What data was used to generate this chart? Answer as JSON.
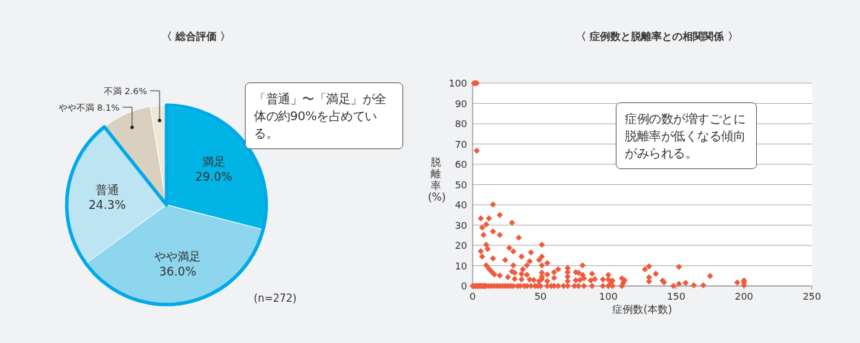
{
  "chart_data": [
    {
      "type": "pie",
      "title": "〈 総合評価 〉",
      "categories": [
        "満足",
        "やや満足",
        "普通",
        "やや不満",
        "不満"
      ],
      "values": [
        29.0,
        36.0,
        24.3,
        8.1,
        2.6
      ],
      "value_labels": [
        "29.0%",
        "36.0%",
        "24.3%",
        "8.1%",
        "2.6%"
      ],
      "colors": [
        "#00b5e6",
        "#8dd6ee",
        "#bde4f2",
        "#d9d0bf",
        "#eee8d8"
      ],
      "annotations": [
        "「普通」〜「満足」が全体の約90%を占めている。",
        "(n=272)"
      ]
    },
    {
      "type": "scatter",
      "title": "〈 症例数と脱離率との相関関係 〉",
      "xlabel": "症例数(本数)",
      "ylabel": "脱離率(%)",
      "xlim": [
        0,
        250
      ],
      "ylim": [
        0,
        100
      ],
      "xticks": [
        0,
        50,
        100,
        150,
        200,
        250
      ],
      "yticks": [
        0,
        10,
        20,
        30,
        40,
        50,
        60,
        70,
        80,
        90,
        100
      ],
      "grid": "y",
      "marker": "diamond",
      "annotations": [
        "症例の数が増すごとに脱離率が低くなる傾向がみられる。"
      ],
      "series": [
        {
          "color": "#f05a3c",
          "x": [
            1,
            2,
            3,
            3,
            15,
            6,
            12,
            20,
            7,
            10,
            8,
            15,
            20,
            29,
            34,
            10,
            11,
            6,
            7,
            15,
            27,
            30,
            24,
            36,
            43,
            51,
            51,
            49,
            42,
            40,
            30,
            51,
            55,
            63,
            60,
            55,
            51,
            51,
            51,
            49,
            37,
            36,
            40,
            29,
            31,
            26,
            31,
            36,
            20,
            10,
            12,
            14,
            16,
            42,
            45,
            60,
            55,
            70,
            70,
            70,
            70,
            81,
            76,
            78,
            76,
            79,
            82,
            81,
            88,
            87,
            90,
            96,
            100,
            100,
            103,
            102,
            110,
            112,
            111,
            127,
            130,
            130,
            130,
            135,
            140,
            141,
            148,
            152,
            152,
            157,
            163,
            170,
            175,
            195,
            200,
            200,
            200,
            0,
            1,
            2,
            3,
            4,
            5,
            6,
            7,
            8,
            9,
            10,
            12,
            14,
            16,
            18,
            20,
            22,
            24,
            26,
            28,
            30,
            33,
            35,
            38,
            40,
            43,
            46,
            48,
            50,
            55,
            58,
            60,
            63,
            67,
            70,
            75,
            78,
            82,
            88,
            96,
            100,
            103,
            110
          ],
          "values": [
            100,
            100,
            100,
            66.7,
            40.2,
            33.3,
            33.3,
            35,
            28.8,
            30.3,
            25.2,
            26.9,
            25.2,
            31.2,
            23.8,
            20.3,
            18.2,
            17.1,
            14.5,
            13.6,
            18.7,
            17,
            12.8,
            14.5,
            16.5,
            20.3,
            14.5,
            12.8,
            12.2,
            10.2,
            10.2,
            10.2,
            11.3,
            8.2,
            6.8,
            5.7,
            6.5,
            4.6,
            3.4,
            2.4,
            8.2,
            5.9,
            5.5,
            7.1,
            6.5,
            4.3,
            3.5,
            3.2,
            5.2,
            10.2,
            8.5,
            7,
            5.7,
            3.2,
            3,
            4,
            2.4,
            8.8,
            6.8,
            4.6,
            2.4,
            10.2,
            6.8,
            6.5,
            2.8,
            3,
            3.7,
            5.4,
            6,
            2.7,
            3.4,
            3.2,
            5.4,
            3.2,
            2.6,
            1.4,
            3.7,
            2.8,
            1.4,
            8.2,
            9.7,
            4.2,
            2.2,
            6,
            2.6,
            1.8,
            0,
            9.4,
            1,
            1.5,
            0.3,
            0.3,
            4.9,
            1.7,
            2.7,
            1.7,
            0.3,
            0,
            0,
            0,
            0,
            0,
            0,
            0,
            0,
            0,
            0,
            0,
            0,
            0,
            0,
            0,
            0,
            0,
            0,
            0,
            0,
            0,
            0,
            0,
            0,
            0,
            0,
            0,
            0,
            0,
            0,
            0,
            0,
            0,
            0,
            0,
            0,
            0,
            0,
            0,
            0,
            0,
            0,
            0
          ]
        }
      ]
    }
  ]
}
